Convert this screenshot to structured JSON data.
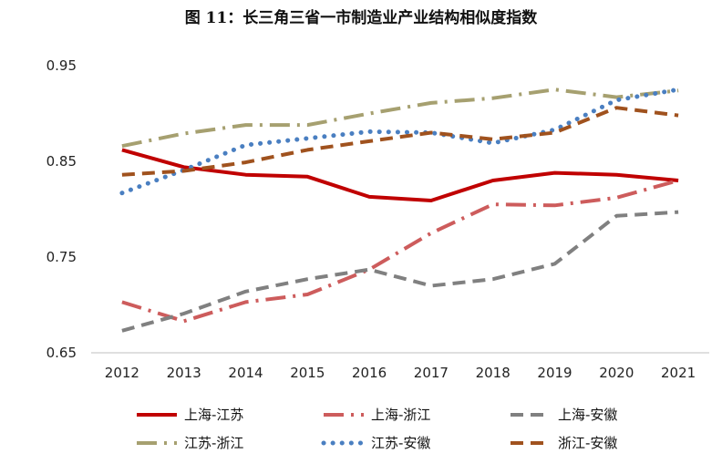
{
  "chart_data": {
    "type": "line",
    "title": "图 11：长三角三省一市制造业产业结构相似度指数",
    "xlabel": "",
    "ylabel": "",
    "categories": [
      "2012",
      "2013",
      "2014",
      "2015",
      "2016",
      "2017",
      "2018",
      "2019",
      "2020",
      "2021"
    ],
    "ylim": [
      0.65,
      0.95
    ],
    "yticks": [
      "0.65",
      "0.75",
      "0.85",
      "0.95"
    ],
    "grid": false,
    "legend_position": "bottom",
    "series": [
      {
        "name": "上海-江苏",
        "values": [
          0.862,
          0.844,
          0.836,
          0.834,
          0.813,
          0.809,
          0.83,
          0.838,
          0.836,
          0.83
        ],
        "color": "#c00000",
        "style": "solid"
      },
      {
        "name": "上海-浙江",
        "values": [
          0.703,
          0.683,
          0.703,
          0.711,
          0.737,
          0.775,
          0.805,
          0.804,
          0.812,
          0.83
        ],
        "color": "#cd5c5c",
        "style": "dashdot"
      },
      {
        "name": "上海-安徽",
        "values": [
          0.673,
          0.691,
          0.714,
          0.727,
          0.737,
          0.72,
          0.727,
          0.743,
          0.793,
          0.797
        ],
        "color": "#808080",
        "style": "dash"
      },
      {
        "name": "江苏-浙江",
        "values": [
          0.866,
          0.879,
          0.888,
          0.888,
          0.9,
          0.911,
          0.916,
          0.925,
          0.917,
          0.924
        ],
        "color": "#a6a070",
        "style": "dashdot"
      },
      {
        "name": "江苏-安徽",
        "values": [
          0.817,
          0.841,
          0.867,
          0.874,
          0.881,
          0.88,
          0.869,
          0.883,
          0.914,
          0.925
        ],
        "color": "#4a7fc1",
        "style": "dot"
      },
      {
        "name": "浙江-安徽",
        "values": [
          0.836,
          0.84,
          0.849,
          0.862,
          0.871,
          0.88,
          0.873,
          0.88,
          0.906,
          0.898
        ],
        "color": "#a0521e",
        "style": "dash"
      }
    ]
  }
}
